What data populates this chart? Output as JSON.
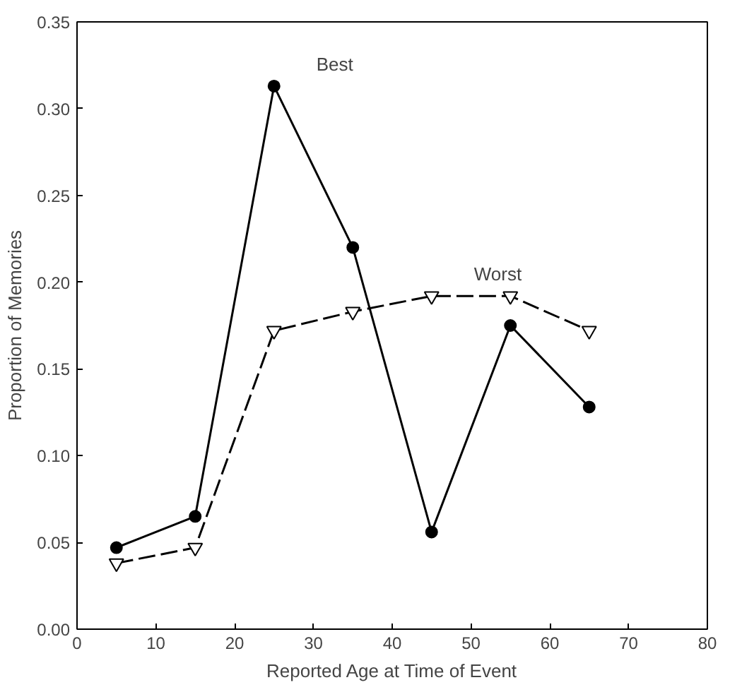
{
  "chart_data": {
    "type": "line",
    "xlabel": "Reported Age at Time of Event",
    "ylabel": "Proportion of Memories",
    "x": [
      5,
      15,
      25,
      35,
      45,
      55,
      65
    ],
    "series": [
      {
        "name": "Best",
        "color": "#000000",
        "values": [
          0.047,
          0.065,
          0.313,
          0.22,
          0.056,
          0.175,
          0.128
        ],
        "marker": "circle",
        "line_style": "solid"
      },
      {
        "name": "Worst",
        "color": "#000000",
        "values": [
          0.038,
          0.047,
          0.172,
          0.183,
          0.192,
          0.192,
          0.172
        ],
        "marker": "triangle",
        "line_style": "dashed"
      }
    ],
    "xlim": [
      0,
      80
    ],
    "xticks": [
      0,
      10,
      20,
      30,
      40,
      50,
      60,
      70,
      80
    ],
    "ylim": [
      0,
      0.35
    ],
    "yticks": [
      {
        "value": 0,
        "label": "0.00"
      },
      {
        "value": 0.05,
        "label": "0.05"
      },
      {
        "value": 0.1,
        "label": "0.10"
      },
      {
        "value": 0.15,
        "label": "0.15"
      },
      {
        "value": 0.2,
        "label": "0.20"
      },
      {
        "value": 0.25,
        "label": "0.25"
      },
      {
        "value": 0.3,
        "label": "0.30"
      },
      {
        "value": 0.35,
        "label": "0.35"
      }
    ],
    "grid": false
  }
}
